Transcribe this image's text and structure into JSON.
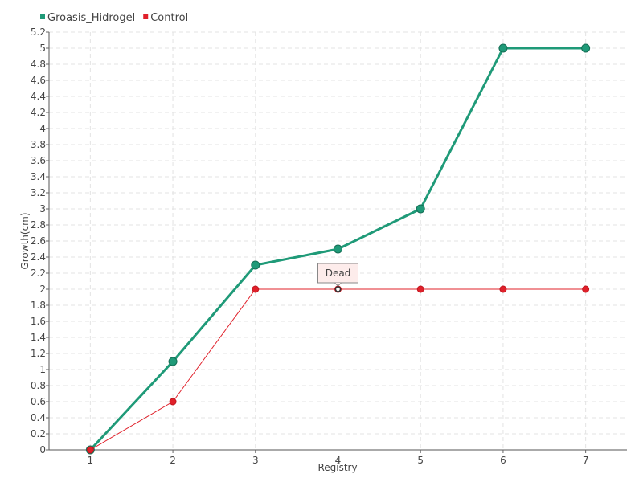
{
  "chart_data": {
    "type": "line",
    "title": "",
    "xlabel": "Registry",
    "ylabel": "Growth(cm)",
    "x": [
      1,
      2,
      3,
      4,
      5,
      6,
      7
    ],
    "xlim": [
      0.5,
      7.5
    ],
    "ylim": [
      0,
      5.2
    ],
    "ytick_step": 0.2,
    "ytick_labels": [
      "0",
      "0.2",
      "0.4",
      "0.6",
      "0.8",
      "1",
      "1.2",
      "1.4",
      "1.6",
      "1.8",
      "2",
      "2.2",
      "2.4",
      "2.6",
      "2.8",
      "3",
      "3.2",
      "3.4",
      "3.6",
      "3.8",
      "4",
      "4.2",
      "4.4",
      "4.6",
      "4.8",
      "5",
      "5.2"
    ],
    "xtick_labels": [
      "1",
      "2",
      "3",
      "4",
      "5",
      "6",
      "7"
    ],
    "grid": true,
    "legend_position": "top-left",
    "series": [
      {
        "name": "Groasis_Hidrogel",
        "color": "#1f9a78",
        "values": [
          0,
          1.1,
          2.3,
          2.5,
          3.0,
          5.0,
          5.0
        ]
      },
      {
        "name": "Control",
        "color": "#e0202a",
        "values": [
          0,
          0.6,
          2.0,
          2.0,
          2.0,
          2.0,
          2.0
        ]
      }
    ],
    "annotations": [
      {
        "text": "Dead",
        "series": "Control",
        "x": 4,
        "y": 2.0
      }
    ]
  }
}
